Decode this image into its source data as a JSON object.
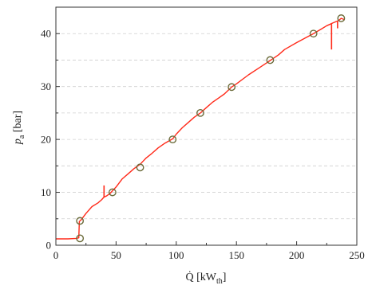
{
  "chart_data": {
    "type": "line",
    "xlabel_parts": {
      "main": "Q̇ [kW",
      "sub": "th",
      "end": "]"
    },
    "ylabel_parts": {
      "main": "p",
      "sub": "a",
      "end": " [bar]"
    },
    "xlim": [
      0,
      250
    ],
    "ylim": [
      0,
      45
    ],
    "xticks": [
      "0",
      "50",
      "100",
      "150",
      "200",
      "250"
    ],
    "yticks": [
      "0",
      "10",
      "20",
      "30",
      "40"
    ],
    "xtick_values": [
      0,
      50,
      100,
      150,
      200,
      250
    ],
    "ytick_values": [
      0,
      10,
      20,
      30,
      40
    ],
    "grid": "horizontal dashed at minor and major y ticks",
    "colors": {
      "line": "#ff2a1a",
      "marker": "#6b6b3a",
      "grid": "#cfcfcf",
      "axis": "#333333"
    },
    "series": [
      {
        "style": "line",
        "x": [
          0,
          10,
          17,
          19,
          19.5,
          20,
          21,
          25,
          30,
          35,
          38,
          40,
          42,
          45,
          50,
          55,
          60,
          65,
          70,
          75,
          80,
          85,
          90,
          97,
          100,
          105,
          110,
          115,
          120,
          125,
          130,
          135,
          140,
          146,
          150,
          160,
          170,
          178,
          185,
          190,
          200,
          205,
          214,
          220,
          225,
          228,
          230,
          232,
          235,
          237,
          240
        ],
        "y": [
          1.2,
          1.2,
          1.3,
          1.4,
          4.5,
          4.6,
          4.8,
          6.0,
          7.3,
          8.0,
          8.6,
          9.1,
          9.3,
          9.8,
          11.0,
          12.5,
          13.5,
          14.5,
          15.3,
          16.5,
          17.4,
          18.4,
          19.2,
          20.1,
          21.0,
          22.2,
          23.2,
          24.2,
          25.0,
          26.0,
          27.0,
          27.8,
          28.6,
          29.9,
          30.5,
          32.2,
          33.7,
          34.9,
          36.0,
          37.0,
          38.3,
          38.9,
          40.0,
          40.8,
          41.5,
          41.8,
          42.0,
          42.2,
          42.5,
          42.9,
          42.6
        ]
      },
      {
        "style": "markers",
        "x": [
          20,
          20,
          47,
          70,
          97,
          120,
          146,
          178,
          214,
          237
        ],
        "y": [
          1.3,
          4.6,
          10.0,
          14.7,
          20.0,
          25.0,
          29.9,
          35.0,
          40.0,
          42.9
        ]
      }
    ],
    "spikes": [
      {
        "x": 40,
        "y_from": 9.0,
        "y_to": 11.3
      },
      {
        "x": 229,
        "y_from": 41.8,
        "y_to": 37.0
      },
      {
        "x": 234,
        "y_from": 42.3,
        "y_to": 41.0
      }
    ]
  }
}
